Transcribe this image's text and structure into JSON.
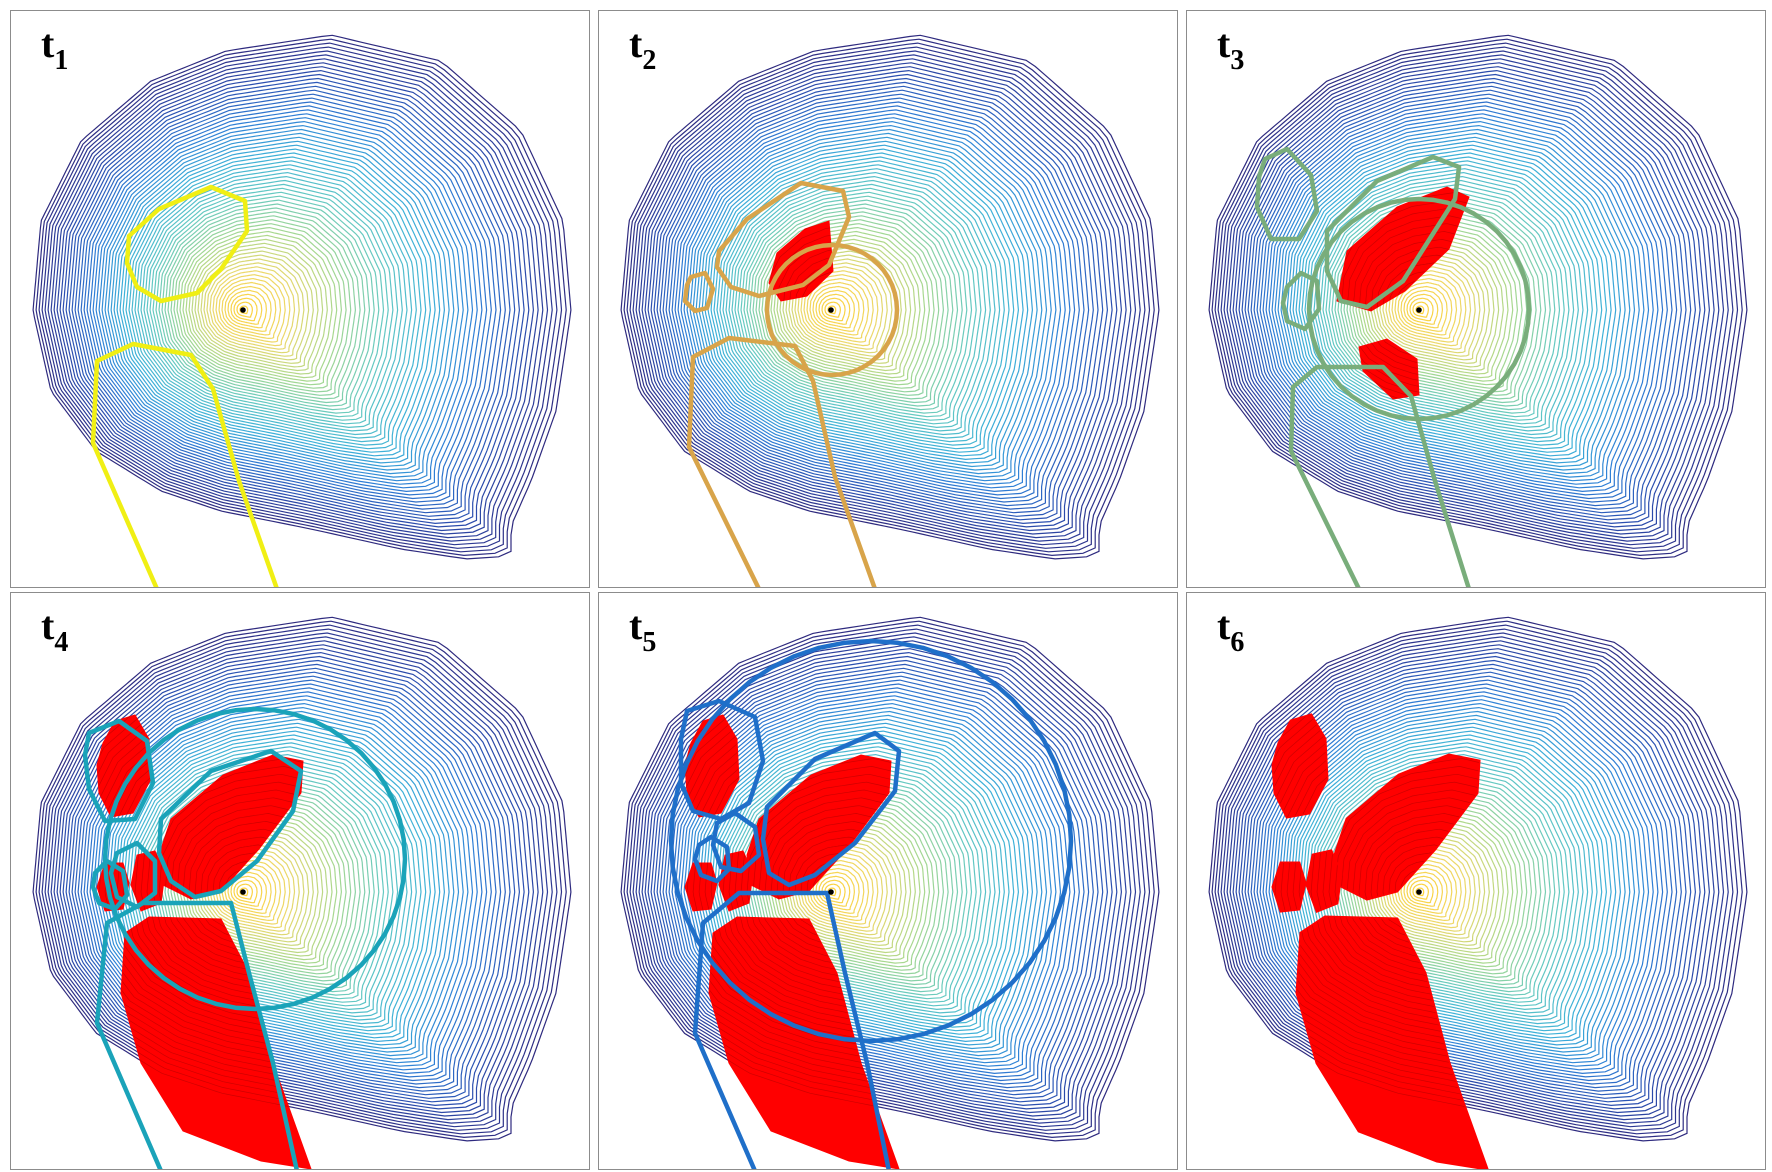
{
  "panels": [
    {
      "id": "t1",
      "label": "t",
      "sub": "1",
      "stage": 1,
      "boundary_color": "#f0ef14"
    },
    {
      "id": "t2",
      "label": "t",
      "sub": "2",
      "stage": 2,
      "boundary_color": "#d8a44a"
    },
    {
      "id": "t3",
      "label": "t",
      "sub": "3",
      "stage": 3,
      "boundary_color": "#79ad7b"
    },
    {
      "id": "t4",
      "label": "t",
      "sub": "4",
      "stage": 4,
      "boundary_color": "#1aa3b9"
    },
    {
      "id": "t5",
      "label": "t",
      "sub": "5",
      "stage": 5,
      "boundary_color": "#1f6fc9"
    },
    {
      "id": "t6",
      "label": "t",
      "sub": "6",
      "stage": 6,
      "boundary_color": "#ff0000"
    }
  ],
  "colors": {
    "region_fill": "#ff0000",
    "contour_colormap": [
      "#2e2a7f",
      "#2b4fb0",
      "#2f7fd6",
      "#3eb1d8",
      "#65c9c1",
      "#a8d88f",
      "#ecd86a",
      "#ffd23a"
    ],
    "center_point": "#000000",
    "panel_border": "#8c8c8c"
  }
}
